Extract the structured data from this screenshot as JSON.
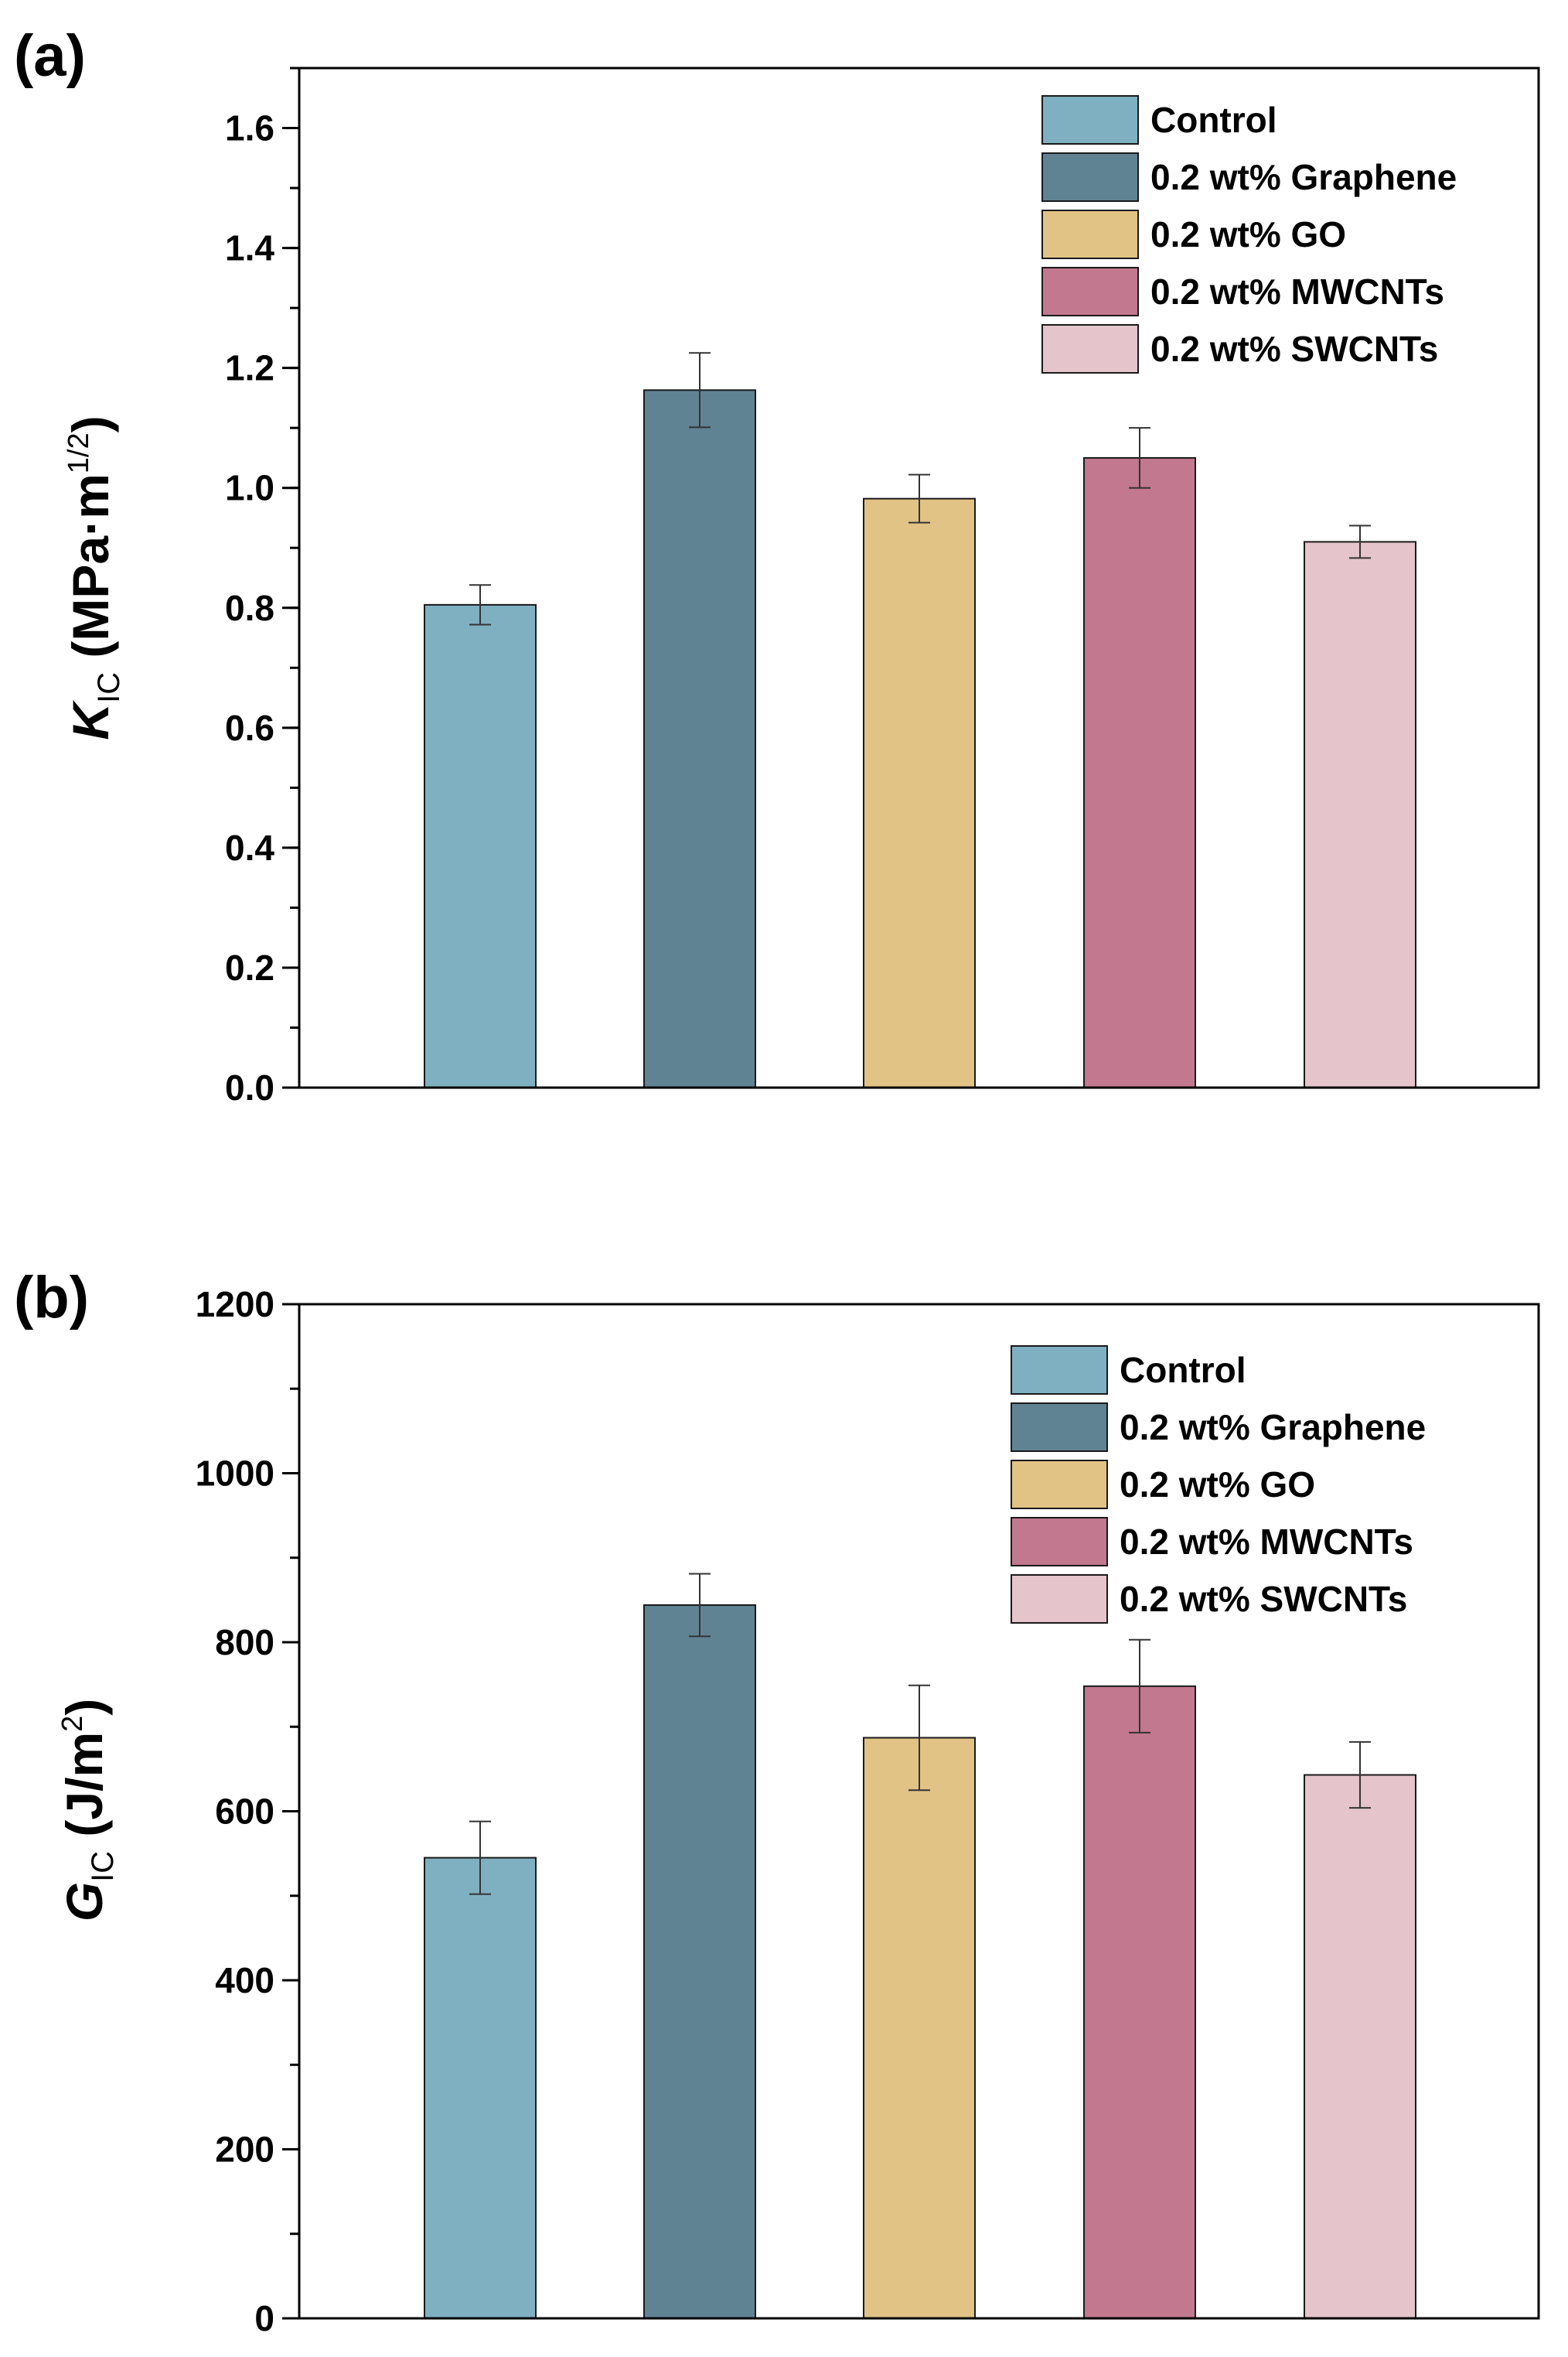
{
  "chart_data": [
    {
      "panel_label": "(a)",
      "type": "bar",
      "categories": [
        "Control",
        "0.2 wt% Graphene",
        "0.2 wt% GO",
        "0.2 wt% MWCNTs",
        "0.2 wt% SWCNTs"
      ],
      "values": [
        0.805,
        1.163,
        0.982,
        1.05,
        0.91
      ],
      "errors": [
        0.033,
        0.062,
        0.04,
        0.05,
        0.027
      ],
      "colors": [
        "#7fb0c2",
        "#608394",
        "#e2c386",
        "#c2788f",
        "#e5c4cb"
      ],
      "ylabel": {
        "main": "K",
        "sub": "IC",
        "unit_prefix": " (MPa·m",
        "sup": "1/2",
        "unit_suffix": ")"
      },
      "ylim": [
        0,
        1.7
      ],
      "yticks": [
        0.0,
        0.2,
        0.4,
        0.6,
        0.8,
        1.0,
        1.2,
        1.4,
        1.6
      ],
      "ytick_labels": [
        "0.0",
        "0.2",
        "0.4",
        "0.6",
        "0.8",
        "1.0",
        "1.2",
        "1.4",
        "1.6"
      ],
      "ytick_minor": 0.1,
      "legend_position": "top-right",
      "grid": false
    },
    {
      "panel_label": "(b)",
      "type": "bar",
      "categories": [
        "Control",
        "0.2 wt% Graphene",
        "0.2 wt% GO",
        "0.2 wt% MWCNTs",
        "0.2 wt% SWCNTs"
      ],
      "values": [
        545,
        844,
        687,
        748,
        643
      ],
      "errors": [
        43,
        37,
        62,
        55,
        39
      ],
      "colors": [
        "#7fb0c2",
        "#608394",
        "#e2c386",
        "#c2788f",
        "#e5c4cb"
      ],
      "ylabel": {
        "main": "G",
        "sub": "IC",
        "unit_prefix": " (J/m",
        "sup": "2",
        "unit_suffix": ")"
      },
      "ylim": [
        0,
        1200
      ],
      "yticks": [
        0,
        200,
        400,
        600,
        800,
        1000,
        1200
      ],
      "ytick_labels": [
        "0",
        "200",
        "400",
        "600",
        "800",
        "1000",
        "1200"
      ],
      "ytick_minor": 100,
      "legend_position": "top-right",
      "grid": false
    }
  ]
}
